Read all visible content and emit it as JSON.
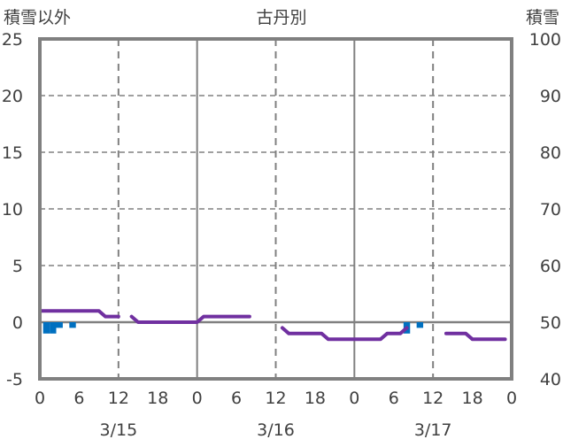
{
  "chart_data": {
    "type": "bar+line",
    "title": "古丹別",
    "ylabel_left": "積雪以外",
    "ylabel_right": "積雪",
    "ylim_left": [
      -5,
      25
    ],
    "ylim_right": [
      40,
      100
    ],
    "yticks_left": [
      -5,
      0,
      5,
      10,
      15,
      20,
      25
    ],
    "yticks_right": [
      40,
      50,
      60,
      70,
      80,
      90,
      100
    ],
    "xlim_hours": [
      0,
      72
    ],
    "xtick_labels": [
      "0",
      "6",
      "12",
      "18",
      "0",
      "6",
      "12",
      "18",
      "0",
      "6",
      "12",
      "18",
      "0"
    ],
    "date_labels": [
      {
        "hour": 12,
        "label": "3/15"
      },
      {
        "hour": 36,
        "label": "3/16"
      },
      {
        "hour": 60,
        "label": "3/17"
      }
    ],
    "grid": true,
    "series": [
      {
        "name": "積雪以外",
        "type": "bar",
        "axis": "left",
        "color": "#0070C0",
        "points": [
          [
            1,
            -1
          ],
          [
            2,
            -1
          ],
          [
            3,
            -0.5
          ],
          [
            5,
            -0.5
          ],
          [
            56,
            -1
          ],
          [
            58,
            -0.5
          ]
        ]
      },
      {
        "name": "積雪",
        "type": "line",
        "axis": "right",
        "color": "#7030A0",
        "segments": [
          [
            [
              0,
              52
            ],
            [
              9,
              52
            ],
            [
              10,
              51
            ],
            [
              12,
              51
            ]
          ],
          [
            [
              14,
              51
            ],
            [
              15,
              50
            ],
            [
              24,
              50
            ],
            [
              25,
              51
            ],
            [
              32,
              51
            ]
          ],
          [
            [
              37,
              49
            ],
            [
              38,
              48
            ],
            [
              43,
              48
            ],
            [
              44,
              47
            ],
            [
              52,
              47
            ],
            [
              53,
              48
            ],
            [
              55,
              48
            ],
            [
              56,
              49
            ]
          ],
          [
            [
              62,
              48
            ],
            [
              65,
              48
            ],
            [
              66,
              47
            ],
            [
              71,
              47
            ]
          ]
        ]
      }
    ]
  }
}
